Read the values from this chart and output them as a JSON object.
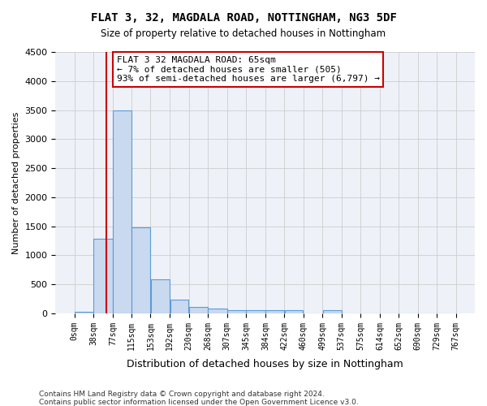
{
  "title": "FLAT 3, 32, MAGDALA ROAD, NOTTINGHAM, NG3 5DF",
  "subtitle": "Size of property relative to detached houses in Nottingham",
  "xlabel": "Distribution of detached houses by size in Nottingham",
  "ylabel": "Number of detached properties",
  "footer1": "Contains HM Land Registry data © Crown copyright and database right 2024.",
  "footer2": "Contains public sector information licensed under the Open Government Licence v3.0.",
  "bin_labels": [
    "0sqm",
    "38sqm",
    "77sqm",
    "115sqm",
    "153sqm",
    "192sqm",
    "230sqm",
    "268sqm",
    "307sqm",
    "345sqm",
    "384sqm",
    "422sqm",
    "460sqm",
    "499sqm",
    "537sqm",
    "575sqm",
    "614sqm",
    "652sqm",
    "690sqm",
    "729sqm",
    "767sqm"
  ],
  "bar_values": [
    30,
    1280,
    3500,
    1480,
    580,
    240,
    115,
    80,
    60,
    55,
    50,
    50,
    0,
    55,
    0,
    0,
    0,
    0,
    0,
    0
  ],
  "bar_color": "#c9d9f0",
  "bar_edge_color": "#5b9bd5",
  "grid_color": "#cccccc",
  "background_color": "#eef2f8",
  "annotation_text": "FLAT 3 32 MAGDALA ROAD: 65sqm\n← 7% of detached houses are smaller (505)\n93% of semi-detached houses are larger (6,797) →",
  "annotation_box_color": "#ffffff",
  "annotation_border_color": "#cc0000",
  "property_line_x": 65,
  "property_line_color": "#cc0000",
  "ylim": [
    0,
    4500
  ],
  "yticks": [
    0,
    500,
    1000,
    1500,
    2000,
    2500,
    3000,
    3500,
    4000,
    4500
  ]
}
